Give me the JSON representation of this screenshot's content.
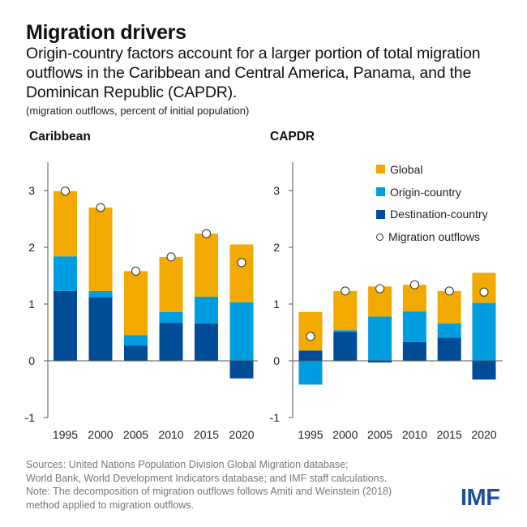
{
  "header": {
    "title": "Migration drivers",
    "subtitle": "Origin-country factors account for a larger portion of total migration outflows in the Caribbean and Central America, Panama, and the Dominican Republic (CAPDR).",
    "units": "(migration outflows, percent of initial population)"
  },
  "colors": {
    "global": "#f2a900",
    "origin": "#009ee0",
    "destination": "#004c97",
    "axis": "#555555"
  },
  "legend": {
    "global": "Global",
    "origin": "Origin-country",
    "destination": "Destination-country",
    "outflows": "Migration outflows"
  },
  "chart_data": [
    {
      "type": "bar",
      "stacked": true,
      "title": "Caribbean",
      "categories": [
        "1995",
        "2000",
        "2005",
        "2010",
        "2015",
        "2020"
      ],
      "ylim": [
        -1,
        3.5
      ],
      "yticks": [
        -1,
        0,
        1,
        2,
        3
      ],
      "grid": false,
      "series": [
        {
          "name": "Destination-country",
          "values": [
            1.23,
            1.12,
            0.27,
            0.67,
            0.66,
            -0.31
          ]
        },
        {
          "name": "Origin-country",
          "values": [
            0.61,
            0.11,
            0.18,
            0.19,
            0.47,
            1.03
          ]
        },
        {
          "name": "Global",
          "values": [
            1.15,
            1.47,
            1.13,
            0.97,
            1.11,
            1.02
          ]
        },
        {
          "name": "Migration outflows",
          "type": "scatter",
          "values": [
            2.99,
            2.7,
            1.58,
            1.83,
            2.24,
            1.73
          ]
        }
      ]
    },
    {
      "type": "bar",
      "stacked": true,
      "title": "CAPDR",
      "categories": [
        "1995",
        "2000",
        "2005",
        "2010",
        "2015",
        "2020"
      ],
      "ylim": [
        -1,
        3.5
      ],
      "yticks": [
        -1,
        0,
        1,
        2,
        3
      ],
      "grid": false,
      "legend_position": "top-right",
      "series": [
        {
          "name": "Destination-country",
          "values": [
            0.18,
            0.51,
            -0.03,
            0.33,
            0.41,
            -0.33
          ]
        },
        {
          "name": "Origin-country",
          "values": [
            -0.42,
            0.03,
            0.78,
            0.54,
            0.25,
            1.02
          ]
        },
        {
          "name": "Global",
          "values": [
            0.68,
            0.69,
            0.53,
            0.47,
            0.57,
            0.53
          ]
        },
        {
          "name": "Migration outflows",
          "type": "scatter",
          "values": [
            0.43,
            1.23,
            1.27,
            1.34,
            1.23,
            1.21
          ]
        }
      ]
    }
  ],
  "footer": {
    "sources_1": "Sources: United Nations Population Division Global Migration database;",
    "sources_2": "World Bank, World Development Indicators database; and IMF staff calculations.",
    "note_1": "Note: The decomposition of migration outflows follows Amiti and Weinstein (2018)",
    "note_2": "method applied to migration outflows.",
    "logo": "IMF"
  }
}
